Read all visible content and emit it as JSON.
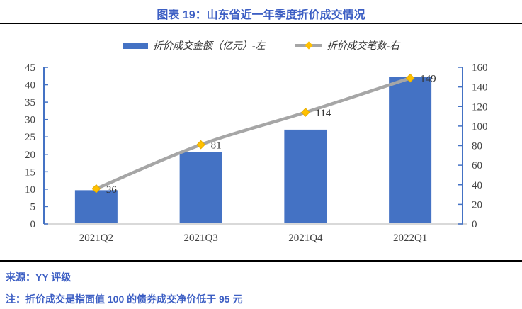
{
  "title": "图表 19：山东省近一年季度折价成交情况",
  "legend": {
    "bars": "折价成交金额（亿元）-左",
    "line": "折价成交笔数-右"
  },
  "footer": {
    "source": "来源：YY 评级",
    "note": "注：折价成交是指面值 100 的债券成交净价低于 95 元"
  },
  "chart_data": {
    "type": "bar",
    "subtype": "bar-line-combo",
    "title": "图表 19：山东省近一年季度折价成交情况",
    "categories": [
      "2021Q2",
      "2021Q3",
      "2021Q4",
      "2022Q1"
    ],
    "series": [
      {
        "name": "折价成交金额（亿元）-左",
        "type": "bar",
        "axis": "left",
        "values": [
          9.7,
          20.6,
          27.1,
          42.3
        ],
        "color": "#4472C4"
      },
      {
        "name": "折价成交笔数-右",
        "type": "line",
        "axis": "right",
        "values": [
          36,
          81,
          114,
          149
        ],
        "data_labels": [
          "36",
          "81",
          "114",
          "149"
        ],
        "color": "#A6A6A6",
        "marker": "diamond",
        "marker_color": "#FFC000",
        "marker_edge": "#E6AC00"
      }
    ],
    "left_axis": {
      "min": 0,
      "max": 45,
      "step": 5
    },
    "right_axis": {
      "min": 0,
      "max": 160,
      "step": 20
    },
    "grid": false,
    "legend_position": "top"
  },
  "colors": {
    "text_blue": "#3D5FC4",
    "bar_blue": "#4472C4",
    "line_gray": "#A6A6A6",
    "marker_gold": "#FFC000",
    "axis_blue": "#4472C4",
    "baseline_gray": "#D9D9D9",
    "tick_text": "#404040",
    "legend_text": "#333333",
    "divider_black": "#000000"
  }
}
